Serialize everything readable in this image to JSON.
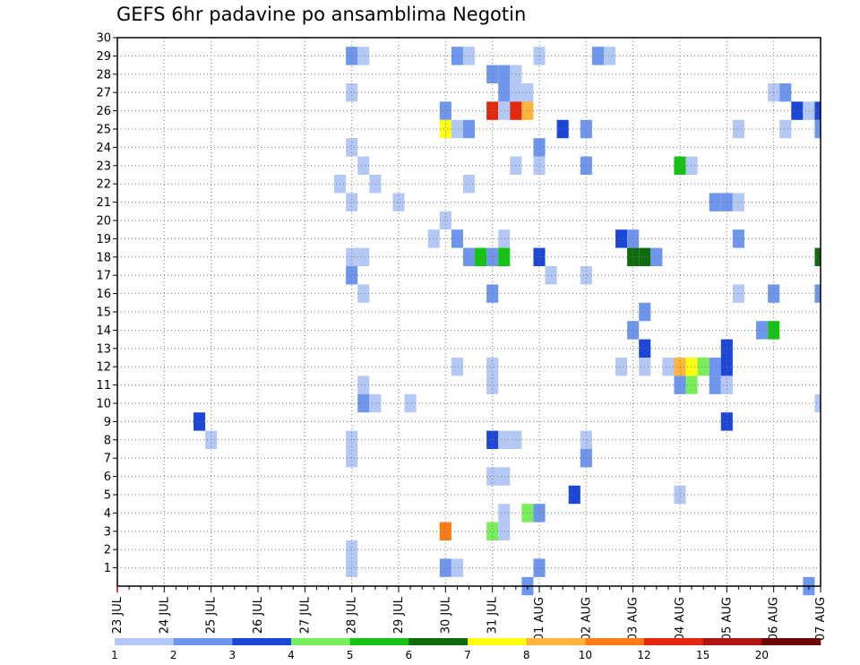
{
  "chart_data": {
    "type": "heatmap",
    "title": "GEFS 6hr padavine po ansamblima Negotin",
    "xlabel": "",
    "ylabel": "",
    "x_tick_labels": [
      "23 JUL",
      "24 JUL",
      "25 JUL",
      "26 JUL",
      "27 JUL",
      "28 JUL",
      "29 JUL",
      "30 JUL",
      "31 JUL",
      "01 AUG",
      "02 AUG",
      "03 AUG",
      "04 AUG",
      "05 AUG",
      "06 AUG",
      "07 AUG"
    ],
    "x_unit": "6-hour steps from 23 JUL 00Z",
    "xlim": [
      0,
      60
    ],
    "y_tick_labels": [
      "1",
      "2",
      "3",
      "4",
      "5",
      "6",
      "7",
      "8",
      "9",
      "10",
      "11",
      "12",
      "13",
      "14",
      "15",
      "16",
      "17",
      "18",
      "19",
      "20",
      "21",
      "22",
      "23",
      "24",
      "25",
      "26",
      "27",
      "28",
      "29",
      "30"
    ],
    "ylim": [
      0,
      30
    ],
    "grid": true,
    "legend": {
      "placement": "bottom",
      "colors": [
        "#b4c8f5",
        "#6e96ec",
        "#1c46d8",
        "#78ee5a",
        "#14c314",
        "#0e6b0e",
        "#ffff10",
        "#ffb43c",
        "#ff7a12",
        "#e2280e",
        "#ae1414",
        "#6e0808"
      ],
      "labels": [
        "1",
        "2",
        "3",
        "4",
        "5",
        "6",
        "7",
        "8",
        "10",
        "12",
        "15",
        "20"
      ]
    },
    "cells": [
      [
        20,
        29,
        2
      ],
      [
        21,
        29,
        1
      ],
      [
        29,
        29,
        2
      ],
      [
        30,
        29,
        1
      ],
      [
        36,
        29,
        1
      ],
      [
        41,
        29,
        2
      ],
      [
        42,
        29,
        1
      ],
      [
        32,
        28,
        2
      ],
      [
        33,
        28,
        2
      ],
      [
        34,
        28,
        1
      ],
      [
        20,
        27,
        1
      ],
      [
        33,
        27,
        2
      ],
      [
        34,
        27,
        1
      ],
      [
        35,
        27,
        1
      ],
      [
        56,
        27,
        1
      ],
      [
        57,
        27,
        2
      ],
      [
        28,
        26,
        2
      ],
      [
        32,
        26,
        10
      ],
      [
        33,
        26,
        1
      ],
      [
        34,
        26,
        10
      ],
      [
        35,
        26,
        8
      ],
      [
        58,
        26,
        3
      ],
      [
        59,
        26,
        1
      ],
      [
        60,
        26,
        3
      ],
      [
        28,
        25,
        7
      ],
      [
        29,
        25,
        1
      ],
      [
        30,
        25,
        2
      ],
      [
        38,
        25,
        3
      ],
      [
        40,
        25,
        2
      ],
      [
        53,
        25,
        1
      ],
      [
        57,
        25,
        1
      ],
      [
        60,
        25,
        2
      ],
      [
        20,
        24,
        1
      ],
      [
        36,
        24,
        2
      ],
      [
        21,
        23,
        1
      ],
      [
        34,
        23,
        1
      ],
      [
        36,
        23,
        1
      ],
      [
        40,
        23,
        2
      ],
      [
        48,
        23,
        5
      ],
      [
        49,
        23,
        1
      ],
      [
        19,
        22,
        1
      ],
      [
        22,
        22,
        1
      ],
      [
        30,
        22,
        1
      ],
      [
        20,
        21,
        1
      ],
      [
        24,
        21,
        1
      ],
      [
        51,
        21,
        2
      ],
      [
        52,
        21,
        2
      ],
      [
        53,
        21,
        1
      ],
      [
        28,
        20,
        1
      ],
      [
        27,
        19,
        1
      ],
      [
        29,
        19,
        2
      ],
      [
        33,
        19,
        1
      ],
      [
        43,
        19,
        3
      ],
      [
        44,
        19,
        2
      ],
      [
        53,
        19,
        2
      ],
      [
        20,
        18,
        1
      ],
      [
        21,
        18,
        1
      ],
      [
        30,
        18,
        2
      ],
      [
        31,
        18,
        5
      ],
      [
        32,
        18,
        2
      ],
      [
        33,
        18,
        5
      ],
      [
        36,
        18,
        3
      ],
      [
        44,
        18,
        6
      ],
      [
        45,
        18,
        6
      ],
      [
        46,
        18,
        2
      ],
      [
        60,
        18,
        6
      ],
      [
        20,
        17,
        2
      ],
      [
        37,
        17,
        1
      ],
      [
        40,
        17,
        1
      ],
      [
        21,
        16,
        1
      ],
      [
        32,
        16,
        2
      ],
      [
        53,
        16,
        1
      ],
      [
        56,
        16,
        2
      ],
      [
        60,
        16,
        2
      ],
      [
        45,
        15,
        2
      ],
      [
        44,
        14,
        2
      ],
      [
        55,
        14,
        2
      ],
      [
        56,
        14,
        5
      ],
      [
        45,
        13,
        3
      ],
      [
        52,
        13,
        3
      ],
      [
        29,
        12,
        1
      ],
      [
        32,
        12,
        1
      ],
      [
        43,
        12,
        1
      ],
      [
        45,
        12,
        1
      ],
      [
        47,
        12,
        1
      ],
      [
        48,
        12,
        8
      ],
      [
        49,
        12,
        7
      ],
      [
        50,
        12,
        4
      ],
      [
        51,
        12,
        2
      ],
      [
        52,
        12,
        3
      ],
      [
        21,
        11,
        1
      ],
      [
        32,
        11,
        1
      ],
      [
        48,
        11,
        2
      ],
      [
        49,
        11,
        4
      ],
      [
        51,
        11,
        2
      ],
      [
        52,
        11,
        1
      ],
      [
        21,
        10,
        2
      ],
      [
        22,
        10,
        1
      ],
      [
        25,
        10,
        1
      ],
      [
        60,
        10,
        1
      ],
      [
        7,
        9,
        3
      ],
      [
        52,
        9,
        3
      ],
      [
        8,
        8,
        1
      ],
      [
        20,
        8,
        1
      ],
      [
        32,
        8,
        3
      ],
      [
        33,
        8,
        1
      ],
      [
        34,
        8,
        1
      ],
      [
        40,
        8,
        1
      ],
      [
        20,
        7,
        1
      ],
      [
        40,
        7,
        2
      ],
      [
        32,
        6,
        1
      ],
      [
        33,
        6,
        1
      ],
      [
        39,
        5,
        3
      ],
      [
        48,
        5,
        1
      ],
      [
        33,
        4,
        1
      ],
      [
        35,
        4,
        4
      ],
      [
        36,
        4,
        2
      ],
      [
        28,
        3,
        9
      ],
      [
        32,
        3,
        4
      ],
      [
        33,
        3,
        1
      ],
      [
        20,
        2,
        1
      ],
      [
        20,
        1,
        1
      ],
      [
        28,
        1,
        2
      ],
      [
        29,
        1,
        1
      ],
      [
        36,
        1,
        2
      ],
      [
        35,
        0,
        2
      ],
      [
        59,
        0,
        2
      ]
    ]
  }
}
